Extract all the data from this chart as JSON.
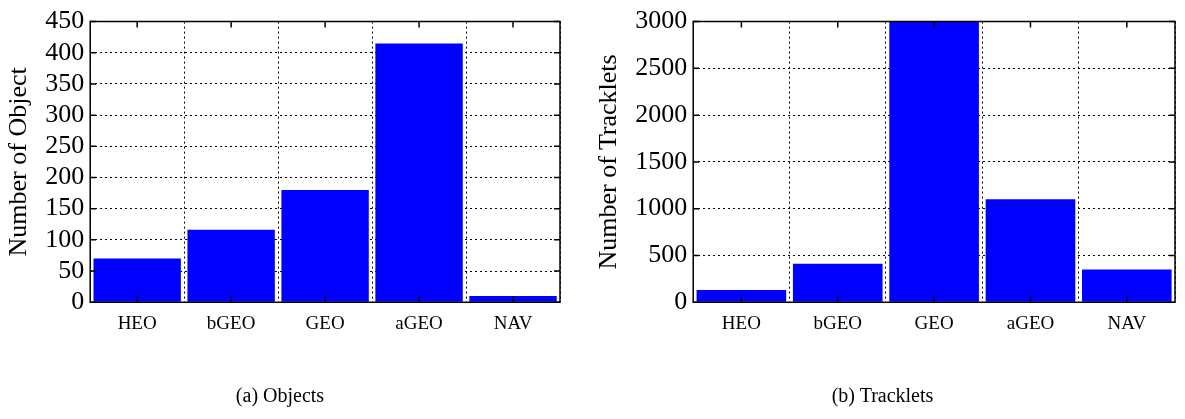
{
  "chart_data": [
    {
      "type": "bar",
      "title": "(a) Objects",
      "ylabel": "Number of Object",
      "categories": [
        "HEO",
        "bGEO",
        "GEO",
        "aGEO",
        "NAV"
      ],
      "values": [
        70,
        116,
        180,
        415,
        10
      ],
      "color": "#0000ff",
      "ylim": [
        0,
        450
      ],
      "yticks": [
        0,
        50,
        100,
        150,
        200,
        250,
        300,
        350,
        400,
        450
      ],
      "grid": true
    },
    {
      "type": "bar",
      "title": "(b) Tracklets",
      "ylabel": "Number of Tracklets",
      "categories": [
        "HEO",
        "bGEO",
        "GEO",
        "aGEO",
        "NAV"
      ],
      "values": [
        130,
        410,
        3000,
        1100,
        350
      ],
      "color": "#0000ff",
      "ylim": [
        0,
        3000
      ],
      "yticks": [
        0,
        500,
        1000,
        1500,
        2000,
        2500,
        3000
      ],
      "grid": true
    }
  ]
}
